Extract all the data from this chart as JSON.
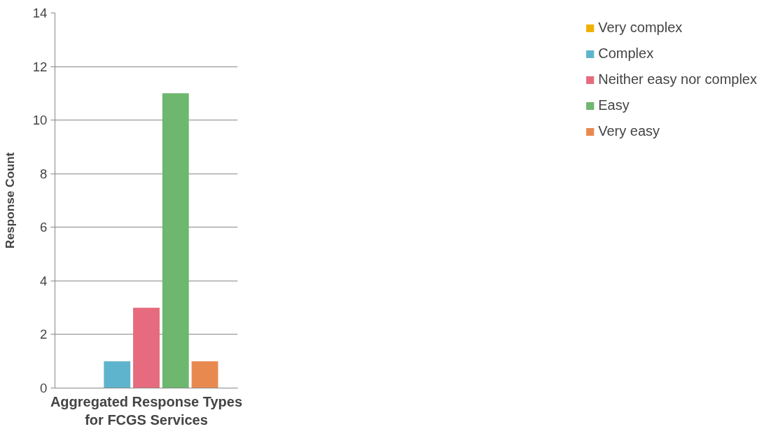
{
  "chart_data": {
    "type": "bar",
    "xlabel": "Aggregated Response Types\nfor FCGS Services",
    "ylabel": "Response Count",
    "categories": [
      null
    ],
    "series": [
      {
        "name": "Very complex",
        "color": "#f2b000",
        "values": [
          0
        ]
      },
      {
        "name": "Complex",
        "color": "#5fb4cd",
        "values": [
          1
        ]
      },
      {
        "name": "Neither easy nor complex",
        "color": "#e66b7e",
        "values": [
          3
        ]
      },
      {
        "name": "Easy",
        "color": "#6db76e",
        "values": [
          11
        ]
      },
      {
        "name": "Very easy",
        "color": "#e88a50",
        "values": [
          1
        ]
      }
    ],
    "ylim": [
      0,
      14
    ],
    "yticks": [
      0,
      2,
      4,
      6,
      8,
      10,
      12,
      14
    ],
    "grid": "y",
    "legend": "right"
  }
}
